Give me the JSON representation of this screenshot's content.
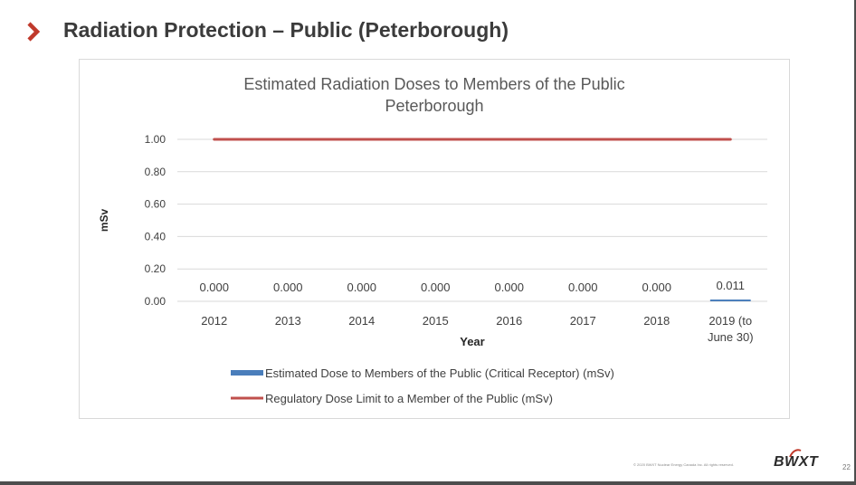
{
  "slide": {
    "title": "Radiation Protection – Public (Peterborough)",
    "page_number": "22",
    "copyright": "© 2020 BWXT Nuclear Energy Canada Inc. All rights reserved.",
    "brand": "BWXT",
    "accent_color": "#c0392b"
  },
  "chart_data": {
    "type": "bar",
    "title_lines": [
      "Estimated Radiation Doses to Members of the Public",
      "Peterborough"
    ],
    "xlabel": "Year",
    "ylabel": "mSv",
    "ylim": [
      0,
      1
    ],
    "yticks": [
      "0.00",
      "0.20",
      "0.40",
      "0.60",
      "0.80",
      "1.00"
    ],
    "categories": [
      [
        "2012"
      ],
      [
        "2013"
      ],
      [
        "2014"
      ],
      [
        "2015"
      ],
      [
        "2016"
      ],
      [
        "2017"
      ],
      [
        "2018"
      ],
      [
        "2019 (to",
        "June 30)"
      ]
    ],
    "grid": true,
    "legend_position": "bottom",
    "series": [
      {
        "name": "Estimated Dose to Members of the Public (Critical Receptor) (mSv)",
        "kind": "bar",
        "color": "#4a7ebb",
        "values": [
          0.0,
          0.0,
          0.0,
          0.0,
          0.0,
          0.0,
          0.0,
          0.011
        ],
        "labels": [
          "0.000",
          "0.000",
          "0.000",
          "0.000",
          "0.000",
          "0.000",
          "0.000",
          "0.011"
        ]
      },
      {
        "name": "Regulatory Dose Limit to a Member of the Public (mSv)",
        "kind": "line",
        "color": "#c0504d",
        "values": [
          1,
          1,
          1,
          1,
          1,
          1,
          1,
          1
        ]
      }
    ]
  }
}
